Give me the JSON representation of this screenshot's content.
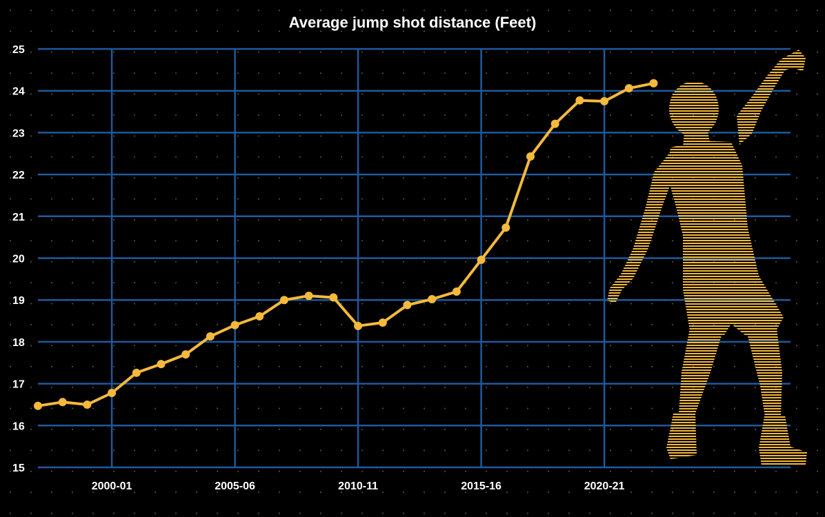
{
  "chart_data": {
    "type": "line",
    "title": "Average jump shot distance (Feet)",
    "xlabel": "",
    "ylabel": "",
    "ylim": [
      15,
      25
    ],
    "yticks": [
      "15",
      "16",
      "17",
      "18",
      "19",
      "20",
      "21",
      "22",
      "23",
      "24",
      "25"
    ],
    "xtick_labels": [
      "2000-01",
      "2005-06",
      "2010-11",
      "2015-16",
      "2020-21"
    ],
    "x": [
      "1997-98",
      "1998-99",
      "1999-00",
      "2000-01",
      "2001-02",
      "2002-03",
      "2003-04",
      "2004-05",
      "2005-06",
      "2006-07",
      "2007-08",
      "2008-09",
      "2009-10",
      "2010-11",
      "2011-12",
      "2012-13",
      "2013-14",
      "2014-15",
      "2015-16",
      "2016-17",
      "2017-18",
      "2018-19",
      "2019-20",
      "2020-21",
      "2021-22",
      "2022-23"
    ],
    "series": [
      {
        "values": [
          16.47,
          16.56,
          16.5,
          16.78,
          17.26,
          17.47,
          17.7,
          18.13,
          18.4,
          18.61,
          19.0,
          19.1,
          19.06,
          18.38,
          18.46,
          18.88,
          19.02,
          19.2,
          19.96,
          20.73,
          22.43,
          23.21,
          23.77,
          23.75,
          24.06,
          24.18
        ]
      }
    ],
    "grid": true,
    "colors": {
      "background": "#000000",
      "grid": "#1f5a9e",
      "line": "#f5b93c",
      "text": "#ffffff"
    },
    "illustration": "basketball-player-figure"
  }
}
